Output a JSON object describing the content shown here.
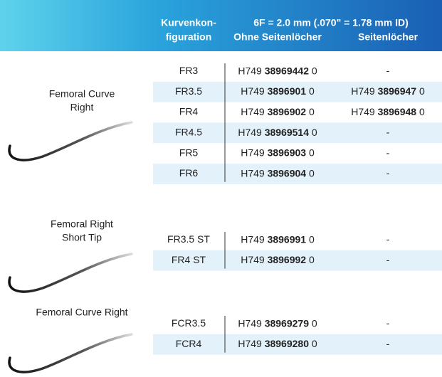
{
  "header": {
    "col1": [
      "Kurvenkon-",
      "figuration"
    ],
    "span": "6F = 2.0 mm (.070\" = 1.78 mm ID)",
    "col2": "Ohne Seitenlöcher",
    "col3": "Seitenlöcher"
  },
  "groups": [
    {
      "label": [
        "Femoral Curve",
        "Right"
      ],
      "rows": [
        {
          "config": "FR3",
          "ohne": {
            "prefix": "H749",
            "number": "38969442",
            "suffix": "0"
          },
          "seiten": "-"
        },
        {
          "config": "FR3.5",
          "ohne": {
            "prefix": "H749",
            "number": "3896901",
            "suffix": "0"
          },
          "seiten": {
            "prefix": "H749",
            "number": "3896947",
            "suffix": "0"
          }
        },
        {
          "config": "FR4",
          "ohne": {
            "prefix": "H749",
            "number": "3896902",
            "suffix": "0"
          },
          "seiten": {
            "prefix": "H749",
            "number": "3896948",
            "suffix": "0"
          }
        },
        {
          "config": "FR4.5",
          "ohne": {
            "prefix": "H749",
            "number": "38969514",
            "suffix": "0"
          },
          "seiten": "-"
        },
        {
          "config": "FR5",
          "ohne": {
            "prefix": "H749",
            "number": "3896903",
            "suffix": "0"
          },
          "seiten": "-"
        },
        {
          "config": "FR6",
          "ohne": {
            "prefix": "H749",
            "number": "3896904",
            "suffix": "0"
          },
          "seiten": "-"
        }
      ]
    },
    {
      "label": [
        "Femoral Right",
        "Short Tip"
      ],
      "rows": [
        {
          "config": "FR3.5 ST",
          "ohne": {
            "prefix": "H749",
            "number": "3896991",
            "suffix": "0"
          },
          "seiten": "-"
        },
        {
          "config": "FR4 ST",
          "ohne": {
            "prefix": "H749",
            "number": "3896992",
            "suffix": "0"
          },
          "seiten": "-"
        }
      ]
    },
    {
      "label": [
        "Femoral Curve Right"
      ],
      "rows": [
        {
          "config": "FCR3.5",
          "ohne": {
            "prefix": "H749",
            "number": "38969279",
            "suffix": "0"
          },
          "seiten": "-"
        },
        {
          "config": "FCR4",
          "ohne": {
            "prefix": "H749",
            "number": "38969280",
            "suffix": "0"
          },
          "seiten": "-"
        }
      ]
    }
  ]
}
